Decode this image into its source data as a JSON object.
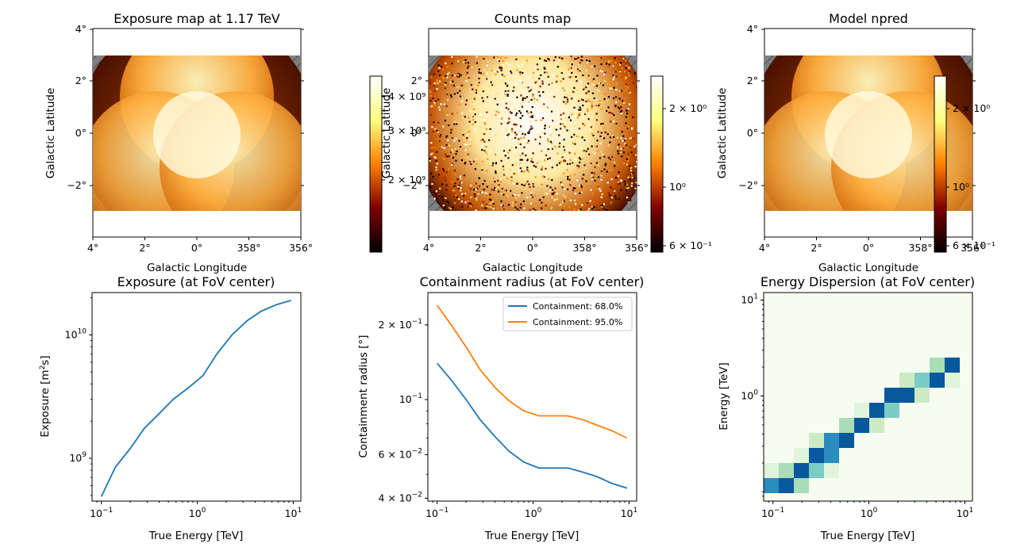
{
  "colors": {
    "exposure_line": "#1f77b4",
    "containment_68": "#1f77b4",
    "containment_95": "#ff7f0e",
    "hatch_fill": "#808080",
    "edisp_background": "#f7fcf0",
    "edisp_high": "#08589e",
    "edisp_mid": "#2b8cbe",
    "edisp_low": "#7bccc4",
    "edisp_faint": "#ccebc5"
  },
  "chart_data": [
    {
      "type": "heatmap",
      "title": "Exposure map at 1.17 TeV",
      "xlabel": "Galactic Longitude",
      "ylabel": "Galactic Latitude",
      "xticks": [
        "4°",
        "2°",
        "0°",
        "358°",
        "356°"
      ],
      "yticks": [
        "4°",
        "2°",
        "0°",
        "−2°"
      ],
      "colormap": "afmhot",
      "colorbar_ticks": [
        "4 × 10⁹",
        "3 × 10⁹",
        "2 × 10⁹"
      ]
    },
    {
      "type": "heatmap",
      "title": "Counts map",
      "xlabel": "Galactic Longitude",
      "ylabel": "Galactic Latitude",
      "xticks": [
        "4°",
        "2°",
        "0°",
        "358°",
        "356°"
      ],
      "yticks": [
        "2°",
        "0°",
        "−2°"
      ],
      "colormap": "afmhot",
      "colorbar_ticks": [
        "2 × 10⁰",
        "10⁰",
        "6 × 10⁻¹"
      ]
    },
    {
      "type": "heatmap",
      "title": "Model npred",
      "xlabel": "Galactic Longitude",
      "ylabel": "Galactic Latitude",
      "xticks": [
        "4°",
        "2°",
        "0°",
        "358°",
        "356°"
      ],
      "yticks": [
        "4°",
        "2°",
        "0°",
        "−2°"
      ],
      "colormap": "afmhot",
      "colorbar_ticks": [
        "2 × 10⁰",
        "10⁰",
        "6 × 10⁻¹"
      ]
    },
    {
      "type": "line",
      "title": "Exposure (at FoV center)",
      "xlabel": "True Energy [TeV]",
      "ylabel": "Exposure [m²s]",
      "xscale": "log",
      "yscale": "log",
      "xlim": [
        0.08,
        12
      ],
      "ylim": [
        450000000.0,
        22000000000.0
      ],
      "xticks": [
        {
          "v": 0.1,
          "base": "10",
          "exp": "−1"
        },
        {
          "v": 1,
          "base": "10",
          "exp": "0"
        },
        {
          "v": 10,
          "base": "10",
          "exp": "1"
        }
      ],
      "yticks": [
        {
          "v": 1000000000.0,
          "base": "10",
          "exp": "9"
        },
        {
          "v": 10000000000.0,
          "base": "10",
          "exp": "10"
        }
      ],
      "series": [
        {
          "x": [
            0.1,
            0.14,
            0.2,
            0.28,
            0.4,
            0.56,
            0.8,
            1.15,
            1.6,
            2.3,
            3.3,
            4.6,
            6.6,
            9.5
          ],
          "y": [
            490000000.0,
            850000000.0,
            1200000000.0,
            1750000000.0,
            2300000000.0,
            3000000000.0,
            3700000000.0,
            4700000000.0,
            7000000000.0,
            10000000000.0,
            13000000000.0,
            15500000000.0,
            17500000000.0,
            19000000000.0
          ]
        }
      ]
    },
    {
      "type": "line",
      "title": "Containment radius (at FoV center)",
      "xlabel": "True Energy [TeV]",
      "ylabel": "Containment radius [°]",
      "xscale": "log",
      "yscale": "log",
      "xlim": [
        0.08,
        12
      ],
      "ylim": [
        0.039,
        0.27
      ],
      "xticks": [
        {
          "v": 0.1,
          "base": "10",
          "exp": "−1"
        },
        {
          "v": 1,
          "base": "10",
          "exp": "0"
        },
        {
          "v": 10,
          "base": "10",
          "exp": "1"
        }
      ],
      "yticks": [
        {
          "v": 0.04,
          "base": "4 × 10",
          "exp": "−2"
        },
        {
          "v": 0.06,
          "base": "6 × 10",
          "exp": "−2"
        },
        {
          "v": 0.1,
          "base": "10",
          "exp": "−1"
        },
        {
          "v": 0.2,
          "base": "2 × 10",
          "exp": "−1"
        }
      ],
      "legend": "top-right",
      "series": [
        {
          "name": "Containment: 68.0%",
          "x": [
            0.1,
            0.14,
            0.2,
            0.28,
            0.4,
            0.56,
            0.8,
            1.15,
            1.6,
            2.3,
            3.3,
            4.6,
            6.6,
            9.5
          ],
          "y": [
            0.14,
            0.12,
            0.1,
            0.083,
            0.071,
            0.062,
            0.056,
            0.053,
            0.053,
            0.053,
            0.051,
            0.049,
            0.046,
            0.044
          ]
        },
        {
          "name": "Containment: 95.0%",
          "x": [
            0.1,
            0.14,
            0.2,
            0.28,
            0.4,
            0.56,
            0.8,
            1.15,
            1.6,
            2.3,
            3.3,
            4.6,
            6.6,
            9.5
          ],
          "y": [
            0.24,
            0.2,
            0.163,
            0.132,
            0.112,
            0.099,
            0.09,
            0.086,
            0.086,
            0.086,
            0.083,
            0.079,
            0.075,
            0.07
          ]
        }
      ]
    },
    {
      "type": "heatmap",
      "title": "Energy Dispersion (at FoV center)",
      "xlabel": "True Energy [TeV]",
      "ylabel": "Energy [TeV]",
      "xscale": "log",
      "yscale": "log",
      "xlim": [
        0.08,
        12
      ],
      "ylim": [
        0.08,
        12
      ],
      "xticks": [
        {
          "v": 0.1,
          "base": "10",
          "exp": "−1"
        },
        {
          "v": 1,
          "base": "10",
          "exp": "0"
        },
        {
          "v": 10,
          "base": "10",
          "exp": "1"
        }
      ],
      "yticks": [
        {
          "v": 1,
          "base": "10",
          "exp": "0"
        },
        {
          "v": 10,
          "base": "10",
          "exp": "1"
        }
      ],
      "bins": 13,
      "cells": [
        [
          0,
          0,
          0.8
        ],
        [
          1,
          0,
          1.0
        ],
        [
          2,
          0,
          0.25
        ],
        [
          0,
          1,
          0.1
        ],
        [
          1,
          1,
          0.3
        ],
        [
          2,
          1,
          1.0
        ],
        [
          3,
          1,
          0.45
        ],
        [
          4,
          1,
          0.1
        ],
        [
          2,
          2,
          0.1
        ],
        [
          3,
          2,
          1.0
        ],
        [
          4,
          2,
          0.8
        ],
        [
          3,
          3,
          0.15
        ],
        [
          4,
          3,
          0.85
        ],
        [
          5,
          3,
          1.0
        ],
        [
          5,
          4,
          0.4
        ],
        [
          6,
          4,
          1.0
        ],
        [
          7,
          4,
          0.2
        ],
        [
          6,
          5,
          0.1
        ],
        [
          7,
          5,
          1.0
        ],
        [
          8,
          5,
          0.55
        ],
        [
          8,
          6,
          0.9
        ],
        [
          9,
          6,
          0.9
        ],
        [
          10,
          6,
          0.15
        ],
        [
          9,
          7,
          0.15
        ],
        [
          10,
          7,
          0.5
        ],
        [
          11,
          7,
          1.0
        ],
        [
          12,
          7,
          0.1
        ],
        [
          11,
          8,
          0.3
        ],
        [
          12,
          8,
          1.0
        ],
        [
          13,
          8,
          0.3
        ],
        [
          13,
          9,
          1.0
        ],
        [
          14,
          9,
          0.85
        ]
      ]
    }
  ]
}
